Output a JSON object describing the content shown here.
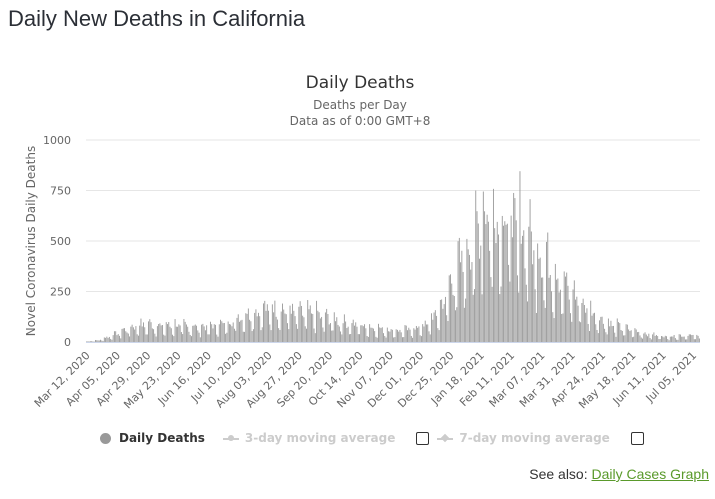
{
  "page": {
    "title": "Daily New Deaths in California",
    "see_also_label": "See also:",
    "see_also_link": "Daily Cases Graph"
  },
  "legend": {
    "items": [
      {
        "label": "Daily Deaths",
        "active": true,
        "checkbox": false
      },
      {
        "label": "3-day moving average",
        "active": false,
        "checkbox": true,
        "checked": false
      },
      {
        "label": "7-day moving average",
        "active": false,
        "checkbox": true,
        "checked": false
      }
    ]
  },
  "colors": {
    "bar": "#999999",
    "grid": "#e6e6e6",
    "axis_line": "#ccd6eb",
    "link": "#5a9a2b",
    "inactive_legend": "#cccccc"
  },
  "chart_data": {
    "type": "bar",
    "title": "Daily Deaths",
    "subtitle_lines": [
      "Deaths per Day",
      "Data as of 0:00 GMT+8"
    ],
    "xlabel": "",
    "ylabel": "Novel Coronavirus Daily Deaths",
    "ylim": [
      0,
      1000
    ],
    "yticks": [
      0,
      250,
      500,
      750,
      1000
    ],
    "grid": true,
    "legend_position": "bottom-center",
    "x_start": "2020-03-12",
    "num_days": 486,
    "xtick_labels": [
      "Mar 12, 2020",
      "Apr 05, 2020",
      "Apr 29, 2020",
      "May 23, 2020",
      "Jun 16, 2020",
      "Jul 10, 2020",
      "Aug 03, 2020",
      "Aug 27, 2020",
      "Sep 20, 2020",
      "Oct 14, 2020",
      "Nov 07, 2020",
      "Dec 01, 2020",
      "Dec 25, 2020",
      "Jan 18, 2021",
      "Feb 11, 2021",
      "Mar 07, 2021",
      "Mar 31, 2021",
      "Apr 24, 2021",
      "May 18, 2021",
      "Jun 11, 2021",
      "Jul 05, 2021"
    ],
    "xtick_interval_days": 24,
    "series": [
      {
        "name": "Daily Deaths",
        "trend_anchors": [
          [
            0,
            2
          ],
          [
            10,
            8
          ],
          [
            20,
            30
          ],
          [
            30,
            55
          ],
          [
            40,
            75
          ],
          [
            50,
            80
          ],
          [
            60,
            72
          ],
          [
            70,
            75
          ],
          [
            80,
            70
          ],
          [
            90,
            68
          ],
          [
            100,
            72
          ],
          [
            110,
            85
          ],
          [
            120,
            110
          ],
          [
            130,
            130
          ],
          [
            140,
            145
          ],
          [
            150,
            150
          ],
          [
            160,
            140
          ],
          [
            170,
            130
          ],
          [
            180,
            125
          ],
          [
            190,
            110
          ],
          [
            200,
            95
          ],
          [
            210,
            80
          ],
          [
            220,
            70
          ],
          [
            230,
            60
          ],
          [
            240,
            55
          ],
          [
            250,
            50
          ],
          [
            260,
            60
          ],
          [
            270,
            80
          ],
          [
            280,
            150
          ],
          [
            290,
            280
          ],
          [
            300,
            400
          ],
          [
            310,
            500
          ],
          [
            320,
            560
          ],
          [
            330,
            580
          ],
          [
            340,
            540
          ],
          [
            350,
            470
          ],
          [
            360,
            390
          ],
          [
            370,
            320
          ],
          [
            380,
            250
          ],
          [
            390,
            190
          ],
          [
            400,
            130
          ],
          [
            410,
            90
          ],
          [
            420,
            70
          ],
          [
            430,
            55
          ],
          [
            440,
            40
          ],
          [
            450,
            30
          ],
          [
            460,
            25
          ],
          [
            470,
            28
          ],
          [
            480,
            30
          ],
          [
            485,
            20
          ]
        ],
        "weekly_pattern": [
          1.35,
          1.25,
          1.15,
          1.05,
          0.95,
          0.55,
          0.45
        ],
        "peak_day": 314,
        "peak_value": 745
      },
      {
        "name": "3-day moving average",
        "visible": false
      },
      {
        "name": "7-day moving average",
        "visible": false
      }
    ]
  }
}
